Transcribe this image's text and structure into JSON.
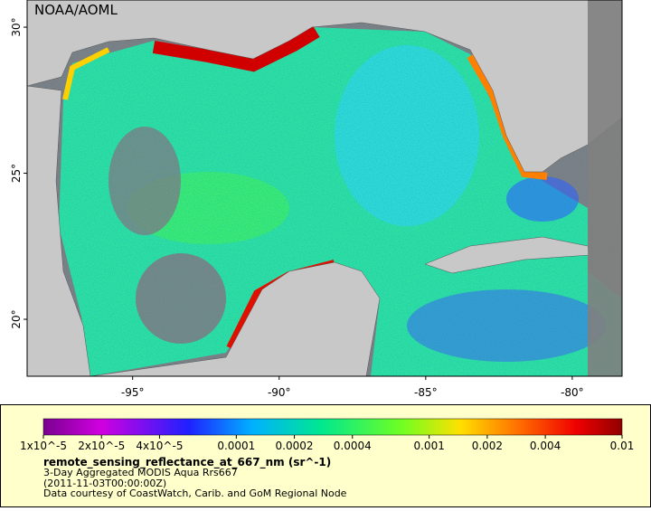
{
  "map": {
    "credit": "NOAA/AOML",
    "lon_range": [
      -98.6,
      -78.3
    ],
    "lat_range": [
      18.05,
      30.93
    ],
    "lon_ticks": [
      {
        "value": -95,
        "label": "-95°"
      },
      {
        "value": -90,
        "label": "-90°"
      },
      {
        "value": -85,
        "label": "-85°"
      },
      {
        "value": -80,
        "label": "-80°"
      }
    ],
    "lat_ticks": [
      {
        "value": 20,
        "label": "20°"
      },
      {
        "value": 25,
        "label": "25°"
      },
      {
        "value": 30,
        "label": "30°"
      }
    ]
  },
  "legend": {
    "scale": "log",
    "range": [
      1e-05,
      0.01
    ],
    "ticks": [
      {
        "value": 1e-05,
        "label": "1x10^-5"
      },
      {
        "value": 2e-05,
        "label": "2x10^-5"
      },
      {
        "value": 4e-05,
        "label": "4x10^-5"
      },
      0.0001,
      0.0002,
      0.0004,
      0.001,
      0.002,
      0.004,
      0.01
    ],
    "title": "remote_sensing_reflectance_at_667_nm (sr^-1)",
    "lines": [
      "3-Day Aggregated MODIS Aqua Rrs667",
      "(2011-11-03T00:00:00Z)",
      "Data courtesy of CoastWatch, Carib. and GoM Regional Node"
    ]
  }
}
